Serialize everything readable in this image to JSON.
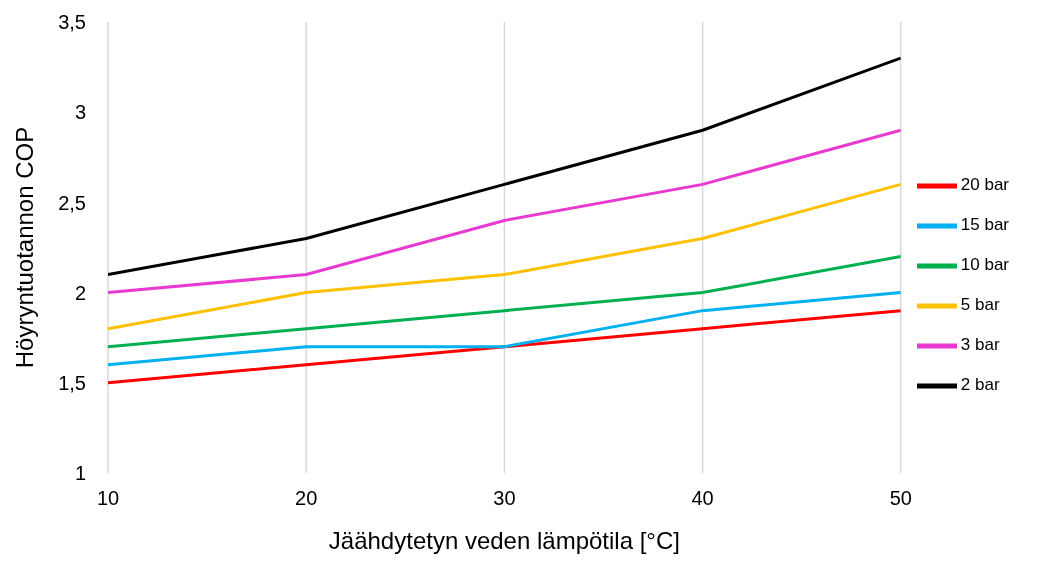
{
  "chart_data": {
    "type": "line",
    "xlabel": "Jäähdytetyn veden lämpötila [°C]",
    "ylabel": "Höyryntuotannon COP",
    "x": [
      10,
      20,
      30,
      40,
      50
    ],
    "series": [
      {
        "name": "20 bar",
        "color": "#ff0000",
        "values": [
          1.5,
          1.6,
          1.7,
          1.8,
          1.9
        ]
      },
      {
        "name": "15 bar",
        "color": "#00b0f0",
        "values": [
          1.6,
          1.7,
          1.7,
          1.9,
          2.0
        ]
      },
      {
        "name": "10 bar",
        "color": "#00b050",
        "values": [
          1.7,
          1.8,
          1.9,
          2.0,
          2.2
        ]
      },
      {
        "name": "5 bar",
        "color": "#ffc000",
        "values": [
          1.8,
          2.0,
          2.1,
          2.3,
          2.6
        ]
      },
      {
        "name": "3 bar",
        "color": "#e83ad0",
        "values": [
          2.0,
          2.1,
          2.4,
          2.6,
          2.9
        ]
      },
      {
        "name": "2 bar",
        "color": "#000000",
        "values": [
          2.1,
          2.3,
          2.6,
          2.9,
          3.3
        ]
      }
    ],
    "xlim": [
      10,
      50
    ],
    "xticks": [
      10,
      20,
      30,
      40,
      50
    ],
    "ylim": [
      1,
      3.5
    ],
    "yticks": [
      1,
      {
        "value": 1.5,
        "label": "1,5"
      },
      2,
      {
        "value": 2.5,
        "label": "2,5"
      },
      3,
      {
        "value": 3.5,
        "label": "3,5"
      }
    ],
    "grid": "x",
    "legend": "right"
  }
}
